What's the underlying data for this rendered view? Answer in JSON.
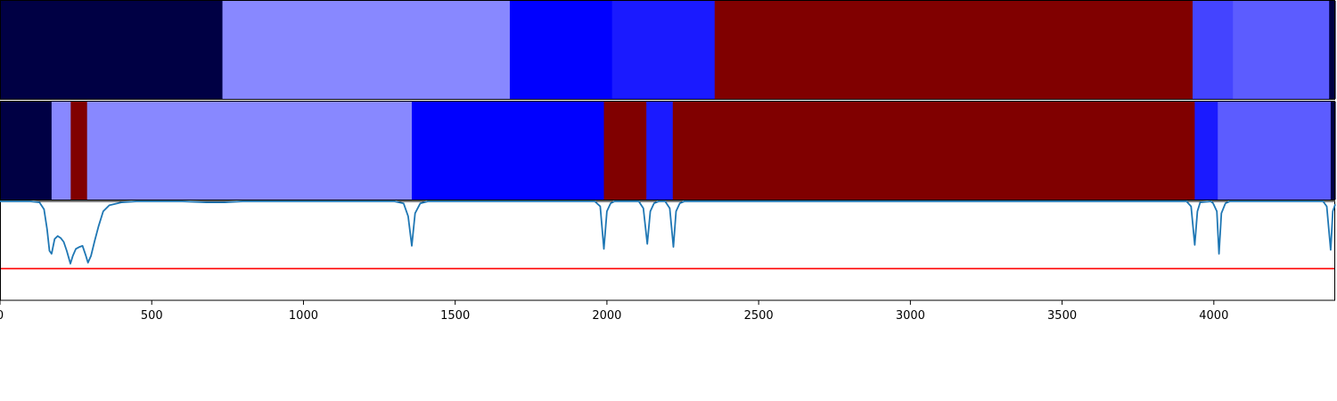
{
  "chart_data": {
    "type": "heatmap",
    "x_range": [
      0,
      4400
    ],
    "x_ticks": [
      0,
      500,
      1000,
      1500,
      2000,
      2500,
      3000,
      3500,
      4000
    ],
    "tick_labels": [
      "0",
      "500",
      "1000",
      "1500",
      "2000",
      "2500",
      "3000",
      "3500",
      "4000"
    ],
    "xlabel": "",
    "ylabel": "",
    "title": "",
    "colors": {
      "c0": "#000044",
      "c1": "#8888ff",
      "c2": "#0000ff",
      "c3": "#1a1aff",
      "c4": "#800000",
      "c5": "#4444ff",
      "c6": "#5c5cff",
      "trace": "#1f77b4",
      "threshold": "#ff0000"
    },
    "segment_rows": [
      [
        {
          "start": 0,
          "end": 733,
          "color": "c0"
        },
        {
          "start": 733,
          "end": 1680,
          "color": "c1"
        },
        {
          "start": 1680,
          "end": 2017,
          "color": "c2"
        },
        {
          "start": 2017,
          "end": 2355,
          "color": "c3"
        },
        {
          "start": 2355,
          "end": 3930,
          "color": "c4"
        },
        {
          "start": 3930,
          "end": 4063,
          "color": "c5"
        },
        {
          "start": 4063,
          "end": 4380,
          "color": "c6"
        },
        {
          "start": 4380,
          "end": 4400,
          "color": "c0"
        }
      ],
      [
        {
          "start": 0,
          "end": 170,
          "color": "c0"
        },
        {
          "start": 170,
          "end": 233,
          "color": "c1"
        },
        {
          "start": 233,
          "end": 287,
          "color": "c4"
        },
        {
          "start": 287,
          "end": 1357,
          "color": "c1"
        },
        {
          "start": 1357,
          "end": 1990,
          "color": "c2"
        },
        {
          "start": 1990,
          "end": 2130,
          "color": "c4"
        },
        {
          "start": 2130,
          "end": 2217,
          "color": "c3"
        },
        {
          "start": 2217,
          "end": 3937,
          "color": "c4"
        },
        {
          "start": 3937,
          "end": 4013,
          "color": "c3"
        },
        {
          "start": 4013,
          "end": 4385,
          "color": "c6"
        },
        {
          "start": 4385,
          "end": 4400,
          "color": "c0"
        }
      ]
    ],
    "trace": {
      "y_range": [
        0,
        1
      ],
      "threshold": 0.32,
      "points": [
        [
          0,
          1.0
        ],
        [
          100,
          1.0
        ],
        [
          130,
          0.99
        ],
        [
          145,
          0.92
        ],
        [
          155,
          0.72
        ],
        [
          163,
          0.5
        ],
        [
          170,
          0.47
        ],
        [
          180,
          0.62
        ],
        [
          190,
          0.65
        ],
        [
          200,
          0.63
        ],
        [
          210,
          0.59
        ],
        [
          220,
          0.5
        ],
        [
          232,
          0.37
        ],
        [
          240,
          0.45
        ],
        [
          250,
          0.52
        ],
        [
          262,
          0.54
        ],
        [
          272,
          0.55
        ],
        [
          282,
          0.46
        ],
        [
          290,
          0.38
        ],
        [
          300,
          0.45
        ],
        [
          312,
          0.6
        ],
        [
          325,
          0.75
        ],
        [
          340,
          0.9
        ],
        [
          360,
          0.96
        ],
        [
          400,
          0.99
        ],
        [
          450,
          1.0
        ],
        [
          600,
          1.0
        ],
        [
          680,
          0.99
        ],
        [
          740,
          0.99
        ],
        [
          800,
          1.0
        ],
        [
          1300,
          1.0
        ],
        [
          1330,
          0.98
        ],
        [
          1345,
          0.85
        ],
        [
          1357,
          0.55
        ],
        [
          1368,
          0.88
        ],
        [
          1385,
          0.98
        ],
        [
          1410,
          1.0
        ],
        [
          1960,
          1.0
        ],
        [
          1978,
          0.95
        ],
        [
          1990,
          0.52
        ],
        [
          2000,
          0.9
        ],
        [
          2012,
          0.98
        ],
        [
          2025,
          1.0
        ],
        [
          2105,
          1.0
        ],
        [
          2120,
          0.93
        ],
        [
          2133,
          0.57
        ],
        [
          2143,
          0.9
        ],
        [
          2155,
          0.98
        ],
        [
          2170,
          1.0
        ],
        [
          2192,
          1.0
        ],
        [
          2207,
          0.93
        ],
        [
          2219,
          0.54
        ],
        [
          2228,
          0.9
        ],
        [
          2240,
          0.98
        ],
        [
          2255,
          1.0
        ],
        [
          3910,
          1.0
        ],
        [
          3925,
          0.95
        ],
        [
          3937,
          0.56
        ],
        [
          3946,
          0.9
        ],
        [
          3955,
          0.99
        ],
        [
          3990,
          1.0
        ],
        [
          3998,
          0.98
        ],
        [
          4010,
          0.9
        ],
        [
          4017,
          0.47
        ],
        [
          4025,
          0.88
        ],
        [
          4038,
          0.98
        ],
        [
          4052,
          1.0
        ],
        [
          4360,
          1.0
        ],
        [
          4372,
          0.95
        ],
        [
          4385,
          0.51
        ],
        [
          4392,
          0.9
        ],
        [
          4400,
          0.97
        ]
      ]
    }
  }
}
